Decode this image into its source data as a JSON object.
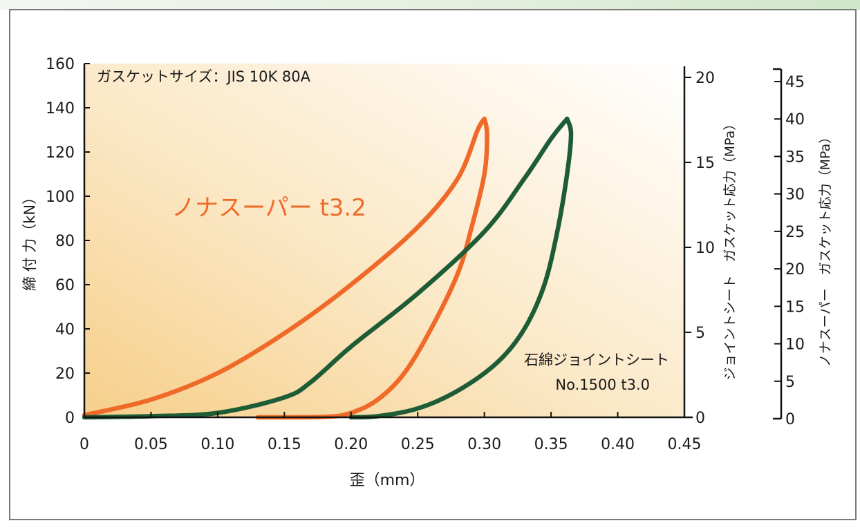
{
  "chart_data": {
    "type": "line",
    "annotation": "ガスケットサイズ：JIS 10K 80A",
    "xlabel": "歪（mm）",
    "ylabel": "締 付 力（kN）",
    "xlim": [
      0,
      0.45
    ],
    "ylim": [
      0,
      160
    ],
    "x_ticks": [
      "0",
      "0.05",
      "0.10",
      "0.15",
      "0.20",
      "0.25",
      "0.30",
      "0.35",
      "0.40",
      "0.45"
    ],
    "y_ticks": [
      "0",
      "20",
      "40",
      "60",
      "80",
      "100",
      "120",
      "140",
      "160"
    ],
    "right_axis_1": {
      "label": "ジョイントシート　ガスケット応力（MPa）",
      "range": [
        0,
        20
      ],
      "ticks": [
        "0",
        "5",
        "10",
        "15",
        "20"
      ]
    },
    "right_axis_2": {
      "label": "ノナスーパー　ガスケット応力（MPa）",
      "range": [
        0,
        45
      ],
      "ticks": [
        "0",
        "5",
        "10",
        "15",
        "20",
        "25",
        "30",
        "35",
        "40",
        "45"
      ]
    },
    "series": [
      {
        "name": "ノナスーパー t3.2",
        "color": "#ef6a28",
        "loading": [
          [
            0,
            1
          ],
          [
            0.05,
            8
          ],
          [
            0.1,
            20
          ],
          [
            0.15,
            38
          ],
          [
            0.2,
            60
          ],
          [
            0.25,
            86
          ],
          [
            0.28,
            108
          ],
          [
            0.295,
            130
          ],
          [
            0.3,
            135
          ]
        ],
        "unloading": [
          [
            0.3,
            135
          ],
          [
            0.302,
            128
          ],
          [
            0.3,
            110
          ],
          [
            0.29,
            85
          ],
          [
            0.28,
            65
          ],
          [
            0.26,
            40
          ],
          [
            0.24,
            20
          ],
          [
            0.22,
            8
          ],
          [
            0.2,
            2
          ],
          [
            0.18,
            0.2
          ],
          [
            0.13,
            0
          ]
        ]
      },
      {
        "name": "石綿ジョイントシート No.1500 t3.0",
        "color": "#1e5c36",
        "loading": [
          [
            0,
            0
          ],
          [
            0.05,
            0.5
          ],
          [
            0.1,
            2
          ],
          [
            0.15,
            9
          ],
          [
            0.17,
            16
          ],
          [
            0.2,
            32
          ],
          [
            0.25,
            56
          ],
          [
            0.3,
            84
          ],
          [
            0.33,
            108
          ],
          [
            0.35,
            126
          ],
          [
            0.362,
            135
          ]
        ],
        "unloading": [
          [
            0.362,
            135
          ],
          [
            0.365,
            128
          ],
          [
            0.362,
            110
          ],
          [
            0.355,
            85
          ],
          [
            0.345,
            60
          ],
          [
            0.33,
            40
          ],
          [
            0.31,
            25
          ],
          [
            0.28,
            12
          ],
          [
            0.25,
            4
          ],
          [
            0.22,
            0.5
          ],
          [
            0.2,
            0
          ]
        ]
      }
    ],
    "labels": {
      "nona": "ノナスーパー t3.2",
      "asbestos_line1": "石綿ジョイントシート",
      "asbestos_line2": "No.1500 t3.0"
    }
  }
}
